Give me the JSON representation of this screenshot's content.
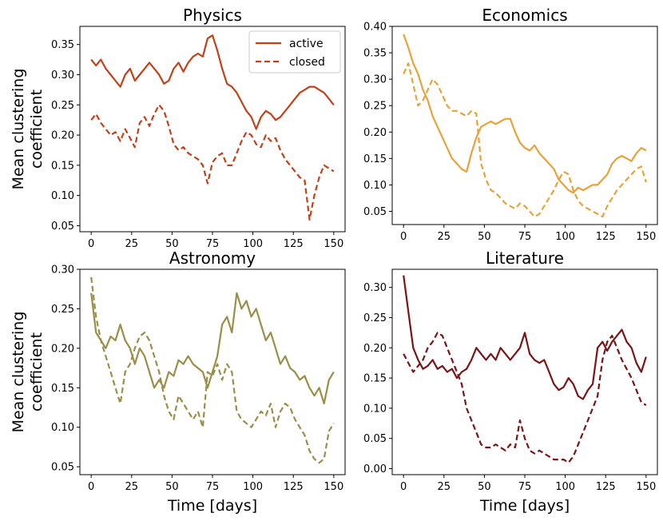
{
  "legend": {
    "active": "active",
    "closed": "closed"
  },
  "chart_data": [
    {
      "type": "line",
      "title": "Physics",
      "xlabel": "",
      "ylabel": "Mean clustering\ncoefficient",
      "xlim": [
        -7,
        157
      ],
      "ylim": [
        0.04,
        0.38
      ],
      "xticks": [
        0,
        25,
        50,
        75,
        100,
        125,
        150
      ],
      "yticks": [
        0.05,
        0.1,
        0.15,
        0.2,
        0.25,
        0.3,
        0.35
      ],
      "ytick_labels": [
        "0.05",
        "0.10",
        "0.15",
        "0.20",
        "0.25",
        "0.30",
        "0.35"
      ],
      "legend_position": "top-right",
      "color": "#c2401a",
      "series": [
        {
          "name": "active",
          "style": "solid",
          "x": [
            0,
            3,
            6,
            9,
            12,
            15,
            18,
            21,
            24,
            27,
            30,
            33,
            36,
            39,
            42,
            45,
            48,
            51,
            54,
            57,
            60,
            63,
            66,
            69,
            72,
            75,
            78,
            81,
            84,
            87,
            90,
            93,
            96,
            99,
            102,
            105,
            108,
            111,
            114,
            117,
            120,
            123,
            126,
            129,
            132,
            135,
            138,
            141,
            144,
            147,
            150
          ],
          "y": [
            0.325,
            0.315,
            0.325,
            0.31,
            0.3,
            0.29,
            0.28,
            0.3,
            0.31,
            0.29,
            0.3,
            0.31,
            0.32,
            0.31,
            0.3,
            0.285,
            0.29,
            0.31,
            0.32,
            0.305,
            0.32,
            0.33,
            0.335,
            0.33,
            0.36,
            0.365,
            0.34,
            0.31,
            0.285,
            0.28,
            0.27,
            0.255,
            0.24,
            0.23,
            0.21,
            0.23,
            0.24,
            0.235,
            0.225,
            0.23,
            0.24,
            0.25,
            0.26,
            0.27,
            0.275,
            0.28,
            0.28,
            0.275,
            0.27,
            0.26,
            0.25
          ]
        },
        {
          "name": "closed",
          "style": "dashed",
          "x": [
            0,
            3,
            6,
            9,
            12,
            15,
            18,
            21,
            24,
            27,
            30,
            33,
            36,
            39,
            42,
            45,
            48,
            51,
            54,
            57,
            60,
            63,
            66,
            69,
            72,
            75,
            78,
            81,
            84,
            87,
            90,
            93,
            96,
            99,
            102,
            105,
            108,
            111,
            114,
            117,
            120,
            123,
            126,
            129,
            132,
            135,
            138,
            141,
            144,
            147,
            150
          ],
          "y": [
            0.225,
            0.235,
            0.22,
            0.21,
            0.2,
            0.205,
            0.19,
            0.21,
            0.195,
            0.18,
            0.22,
            0.23,
            0.215,
            0.235,
            0.25,
            0.24,
            0.215,
            0.185,
            0.175,
            0.18,
            0.17,
            0.165,
            0.16,
            0.15,
            0.12,
            0.155,
            0.165,
            0.17,
            0.15,
            0.15,
            0.17,
            0.19,
            0.205,
            0.2,
            0.185,
            0.18,
            0.2,
            0.19,
            0.195,
            0.175,
            0.16,
            0.15,
            0.14,
            0.13,
            0.125,
            0.06,
            0.1,
            0.13,
            0.15,
            0.145,
            0.14
          ]
        }
      ]
    },
    {
      "type": "line",
      "title": "Economics",
      "xlabel": "",
      "ylabel": "",
      "xlim": [
        -7,
        157
      ],
      "ylim": [
        0.025,
        0.4
      ],
      "xticks": [
        0,
        25,
        50,
        75,
        100,
        125,
        150
      ],
      "yticks": [
        0.05,
        0.1,
        0.15,
        0.2,
        0.25,
        0.3,
        0.35,
        0.4
      ],
      "ytick_labels": [
        "0.05",
        "0.10",
        "0.15",
        "0.20",
        "0.25",
        "0.30",
        "0.35",
        "0.40"
      ],
      "color": "#e8a23a",
      "series": [
        {
          "name": "active",
          "style": "solid",
          "x": [
            0,
            3,
            6,
            9,
            12,
            15,
            18,
            21,
            24,
            27,
            30,
            33,
            36,
            39,
            42,
            45,
            48,
            51,
            54,
            57,
            60,
            63,
            66,
            69,
            72,
            75,
            78,
            81,
            84,
            87,
            90,
            93,
            96,
            99,
            102,
            105,
            108,
            111,
            114,
            117,
            120,
            123,
            126,
            129,
            132,
            135,
            138,
            141,
            144,
            147,
            150
          ],
          "y": [
            0.385,
            0.36,
            0.33,
            0.31,
            0.28,
            0.26,
            0.23,
            0.21,
            0.19,
            0.17,
            0.15,
            0.14,
            0.13,
            0.125,
            0.16,
            0.19,
            0.21,
            0.215,
            0.22,
            0.215,
            0.22,
            0.225,
            0.225,
            0.2,
            0.18,
            0.17,
            0.165,
            0.175,
            0.16,
            0.15,
            0.14,
            0.13,
            0.11,
            0.1,
            0.09,
            0.085,
            0.095,
            0.09,
            0.095,
            0.1,
            0.1,
            0.11,
            0.12,
            0.14,
            0.15,
            0.155,
            0.15,
            0.145,
            0.16,
            0.17,
            0.165
          ]
        },
        {
          "name": "closed",
          "style": "dashed",
          "x": [
            0,
            3,
            6,
            9,
            12,
            15,
            18,
            21,
            24,
            27,
            30,
            33,
            36,
            39,
            42,
            45,
            48,
            51,
            54,
            57,
            60,
            63,
            66,
            69,
            72,
            75,
            78,
            81,
            84,
            87,
            90,
            93,
            96,
            99,
            102,
            105,
            108,
            111,
            114,
            117,
            120,
            123,
            126,
            129,
            132,
            135,
            138,
            141,
            144,
            147,
            150
          ],
          "y": [
            0.31,
            0.33,
            0.29,
            0.25,
            0.26,
            0.28,
            0.3,
            0.29,
            0.27,
            0.25,
            0.24,
            0.24,
            0.235,
            0.23,
            0.24,
            0.235,
            0.14,
            0.11,
            0.09,
            0.085,
            0.075,
            0.065,
            0.06,
            0.055,
            0.065,
            0.06,
            0.05,
            0.04,
            0.045,
            0.06,
            0.075,
            0.09,
            0.11,
            0.125,
            0.12,
            0.09,
            0.07,
            0.06,
            0.055,
            0.05,
            0.045,
            0.04,
            0.06,
            0.075,
            0.09,
            0.1,
            0.11,
            0.12,
            0.13,
            0.135,
            0.105
          ]
        }
      ]
    },
    {
      "type": "line",
      "title": "Astronomy",
      "xlabel": "Time [days]",
      "ylabel": "Mean clustering\ncoefficient",
      "xlim": [
        -7,
        157
      ],
      "ylim": [
        0.04,
        0.3
      ],
      "xticks": [
        0,
        25,
        50,
        75,
        100,
        125,
        150
      ],
      "yticks": [
        0.05,
        0.1,
        0.15,
        0.2,
        0.25,
        0.3
      ],
      "ytick_labels": [
        "0.05",
        "0.10",
        "0.15",
        "0.20",
        "0.25",
        "0.30"
      ],
      "color": "#9a8f48",
      "series": [
        {
          "name": "active",
          "style": "solid",
          "x": [
            0,
            3,
            6,
            9,
            12,
            15,
            18,
            21,
            24,
            27,
            30,
            33,
            36,
            39,
            42,
            45,
            48,
            51,
            54,
            57,
            60,
            63,
            66,
            69,
            72,
            75,
            78,
            81,
            84,
            87,
            90,
            93,
            96,
            99,
            102,
            105,
            108,
            111,
            114,
            117,
            120,
            123,
            126,
            129,
            132,
            135,
            138,
            141,
            144,
            147,
            150
          ],
          "y": [
            0.27,
            0.22,
            0.21,
            0.2,
            0.215,
            0.21,
            0.23,
            0.21,
            0.2,
            0.18,
            0.2,
            0.19,
            0.17,
            0.15,
            0.16,
            0.15,
            0.17,
            0.165,
            0.185,
            0.18,
            0.19,
            0.18,
            0.175,
            0.17,
            0.15,
            0.17,
            0.19,
            0.23,
            0.24,
            0.22,
            0.27,
            0.25,
            0.26,
            0.24,
            0.25,
            0.23,
            0.21,
            0.22,
            0.2,
            0.18,
            0.19,
            0.175,
            0.17,
            0.16,
            0.165,
            0.15,
            0.14,
            0.15,
            0.13,
            0.16,
            0.17
          ]
        },
        {
          "name": "closed",
          "style": "dashed",
          "x": [
            0,
            3,
            6,
            9,
            12,
            15,
            18,
            21,
            24,
            27,
            30,
            33,
            36,
            39,
            42,
            45,
            48,
            51,
            54,
            57,
            60,
            63,
            66,
            69,
            72,
            75,
            78,
            81,
            84,
            87,
            90,
            93,
            96,
            99,
            102,
            105,
            108,
            111,
            114,
            117,
            120,
            123,
            126,
            129,
            132,
            135,
            138,
            141,
            144,
            147,
            150
          ],
          "y": [
            0.29,
            0.24,
            0.21,
            0.19,
            0.17,
            0.15,
            0.13,
            0.17,
            0.18,
            0.2,
            0.215,
            0.22,
            0.21,
            0.19,
            0.17,
            0.14,
            0.12,
            0.11,
            0.14,
            0.13,
            0.12,
            0.11,
            0.12,
            0.1,
            0.17,
            0.165,
            0.18,
            0.16,
            0.18,
            0.17,
            0.12,
            0.11,
            0.105,
            0.1,
            0.11,
            0.12,
            0.115,
            0.13,
            0.1,
            0.12,
            0.13,
            0.125,
            0.11,
            0.1,
            0.09,
            0.07,
            0.06,
            0.055,
            0.06,
            0.095,
            0.105
          ]
        }
      ]
    },
    {
      "type": "line",
      "title": "Literature",
      "xlabel": "Time [days]",
      "ylabel": "",
      "xlim": [
        -7,
        157
      ],
      "ylim": [
        -0.01,
        0.33
      ],
      "xticks": [
        0,
        25,
        50,
        75,
        100,
        125,
        150
      ],
      "yticks": [
        0.0,
        0.05,
        0.1,
        0.15,
        0.2,
        0.25,
        0.3
      ],
      "ytick_labels": [
        "0.00",
        "0.05",
        "0.10",
        "0.15",
        "0.20",
        "0.25",
        "0.30"
      ],
      "color": "#7a1417",
      "series": [
        {
          "name": "active",
          "style": "solid",
          "x": [
            0,
            3,
            6,
            9,
            12,
            15,
            18,
            21,
            24,
            27,
            30,
            33,
            36,
            39,
            42,
            45,
            48,
            51,
            54,
            57,
            60,
            63,
            66,
            69,
            72,
            75,
            78,
            81,
            84,
            87,
            90,
            93,
            96,
            99,
            102,
            105,
            108,
            111,
            114,
            117,
            120,
            123,
            126,
            129,
            132,
            135,
            138,
            141,
            144,
            147,
            150
          ],
          "y": [
            0.32,
            0.26,
            0.2,
            0.18,
            0.165,
            0.17,
            0.18,
            0.165,
            0.17,
            0.16,
            0.165,
            0.15,
            0.16,
            0.165,
            0.18,
            0.2,
            0.19,
            0.18,
            0.19,
            0.18,
            0.2,
            0.19,
            0.18,
            0.19,
            0.2,
            0.225,
            0.19,
            0.18,
            0.175,
            0.18,
            0.16,
            0.14,
            0.13,
            0.135,
            0.15,
            0.14,
            0.12,
            0.115,
            0.13,
            0.14,
            0.2,
            0.21,
            0.195,
            0.21,
            0.22,
            0.23,
            0.21,
            0.2,
            0.175,
            0.16,
            0.185
          ]
        },
        {
          "name": "closed",
          "style": "dashed",
          "x": [
            0,
            3,
            6,
            9,
            12,
            15,
            18,
            21,
            24,
            27,
            30,
            33,
            36,
            39,
            42,
            45,
            48,
            51,
            54,
            57,
            60,
            63,
            66,
            69,
            72,
            75,
            78,
            81,
            84,
            87,
            90,
            93,
            96,
            99,
            102,
            105,
            108,
            111,
            114,
            117,
            120,
            123,
            126,
            129,
            132,
            135,
            138,
            141,
            144,
            147,
            150
          ],
          "y": [
            0.19,
            0.175,
            0.16,
            0.17,
            0.18,
            0.2,
            0.21,
            0.225,
            0.22,
            0.2,
            0.18,
            0.16,
            0.14,
            0.1,
            0.08,
            0.06,
            0.04,
            0.035,
            0.035,
            0.04,
            0.035,
            0.03,
            0.04,
            0.035,
            0.08,
            0.05,
            0.03,
            0.025,
            0.03,
            0.025,
            0.02,
            0.015,
            0.015,
            0.015,
            0.01,
            0.02,
            0.04,
            0.06,
            0.08,
            0.1,
            0.12,
            0.18,
            0.21,
            0.22,
            0.2,
            0.18,
            0.165,
            0.15,
            0.13,
            0.11,
            0.105
          ]
        }
      ]
    }
  ]
}
